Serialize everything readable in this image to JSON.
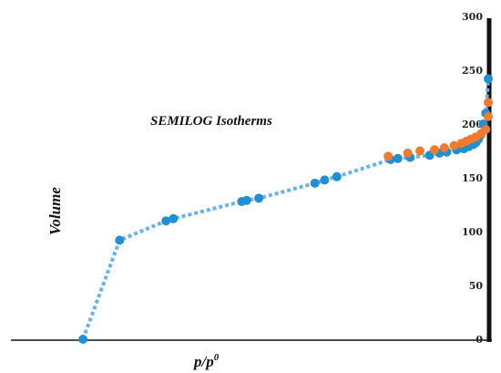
{
  "chart_data": {
    "type": "scatter",
    "title": "SEMILOG Isotherms",
    "xlabel": "p/p",
    "xlabel_sup": "0",
    "ylabel": "Volume",
    "ylim": [
      0,
      300
    ],
    "xlim": [
      0,
      1
    ],
    "y_ticks": [
      "0",
      "50",
      "100",
      "150",
      "200",
      "250",
      "300"
    ],
    "grid": false,
    "series": [
      {
        "color": "#1f8fd6",
        "line_color": "#6ab4e4",
        "x": [
          0.17,
          0.245,
          0.34,
          0.355,
          0.495,
          0.505,
          0.53,
          0.645,
          0.665,
          0.69,
          0.8,
          0.815,
          0.84,
          0.88,
          0.9,
          0.915,
          0.935,
          0.95,
          0.96,
          0.97,
          0.975,
          0.98,
          0.985,
          0.99,
          0.995,
          1.0
        ],
        "y": [
          0,
          92,
          110,
          112,
          128,
          129,
          131,
          145,
          148,
          151,
          167,
          168,
          169,
          171,
          173,
          174,
          176,
          177,
          179,
          181,
          183,
          186,
          190,
          200,
          210,
          242
        ]
      },
      {
        "color": "#f07a2e",
        "x": [
          0.795,
          0.835,
          0.86,
          0.89,
          0.91,
          0.93,
          0.945,
          0.955,
          0.965,
          0.975,
          0.985,
          0.995,
          1.0,
          1.0
        ],
        "y": [
          170,
          173,
          175,
          176,
          178,
          180,
          182,
          184,
          186,
          188,
          191,
          195,
          207,
          220
        ]
      }
    ]
  }
}
